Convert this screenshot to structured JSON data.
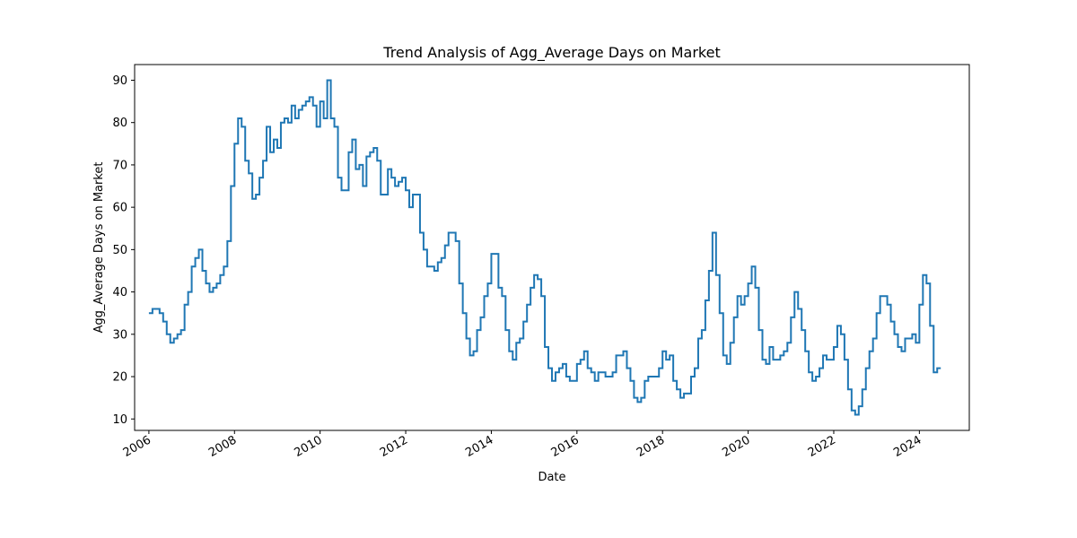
{
  "chart_data": {
    "type": "line",
    "title": "Trend Analysis of Agg_Average Days on Market",
    "xlabel": "Date",
    "ylabel": "Agg_Average Days on Market",
    "x_ticks": [
      "2006",
      "2008",
      "2010",
      "2012",
      "2014",
      "2016",
      "2018",
      "2020",
      "2022",
      "2024"
    ],
    "y_ticks": [
      10,
      20,
      30,
      40,
      50,
      60,
      70,
      80,
      90
    ],
    "xlim": [
      "2005-09",
      "2025-03"
    ],
    "ylim": [
      7.3,
      93.7
    ],
    "grid": false,
    "line_color": "#1f77b4",
    "series": [
      {
        "x": [
          "2006-01",
          "2006-02",
          "2006-03",
          "2006-04",
          "2006-05",
          "2006-06",
          "2006-07",
          "2006-08",
          "2006-09",
          "2006-10",
          "2006-11",
          "2006-12",
          "2007-01",
          "2007-02",
          "2007-03",
          "2007-04",
          "2007-05",
          "2007-06",
          "2007-07",
          "2007-08",
          "2007-09",
          "2007-10",
          "2007-11",
          "2007-12",
          "2008-01",
          "2008-02",
          "2008-03",
          "2008-04",
          "2008-05",
          "2008-06",
          "2008-07",
          "2008-08",
          "2008-09",
          "2008-10",
          "2008-11",
          "2008-12",
          "2009-01",
          "2009-02",
          "2009-03",
          "2009-04",
          "2009-05",
          "2009-06",
          "2009-07",
          "2009-08",
          "2009-09",
          "2009-10",
          "2009-11",
          "2009-12",
          "2010-01",
          "2010-02",
          "2010-03",
          "2010-04",
          "2010-05",
          "2010-06",
          "2010-07",
          "2010-08",
          "2010-09",
          "2010-10",
          "2010-11",
          "2010-12",
          "2011-01",
          "2011-02",
          "2011-03",
          "2011-04",
          "2011-05",
          "2011-06",
          "2011-07",
          "2011-08",
          "2011-09",
          "2011-10",
          "2011-11",
          "2011-12",
          "2012-01",
          "2012-02",
          "2012-03",
          "2012-04",
          "2012-05",
          "2012-06",
          "2012-07",
          "2012-08",
          "2012-09",
          "2012-10",
          "2012-11",
          "2012-12",
          "2013-01",
          "2013-02",
          "2013-03",
          "2013-04",
          "2013-05",
          "2013-06",
          "2013-07",
          "2013-08",
          "2013-09",
          "2013-10",
          "2013-11",
          "2013-12",
          "2014-01",
          "2014-02",
          "2014-03",
          "2014-04",
          "2014-05",
          "2014-06",
          "2014-07",
          "2014-08",
          "2014-09",
          "2014-10",
          "2014-11",
          "2014-12",
          "2015-01",
          "2015-02",
          "2015-03",
          "2015-04",
          "2015-05",
          "2015-06",
          "2015-07",
          "2015-08",
          "2015-09",
          "2015-10",
          "2015-11",
          "2015-12",
          "2016-01",
          "2016-02",
          "2016-03",
          "2016-04",
          "2016-05",
          "2016-06",
          "2016-07",
          "2016-08",
          "2016-09",
          "2016-10",
          "2016-11",
          "2016-12",
          "2017-01",
          "2017-02",
          "2017-03",
          "2017-04",
          "2017-05",
          "2017-06",
          "2017-07",
          "2017-08",
          "2017-09",
          "2017-10",
          "2017-11",
          "2017-12",
          "2018-01",
          "2018-02",
          "2018-03",
          "2018-04",
          "2018-05",
          "2018-06",
          "2018-07",
          "2018-08",
          "2018-09",
          "2018-10",
          "2018-11",
          "2018-12",
          "2019-01",
          "2019-02",
          "2019-03",
          "2019-04",
          "2019-05",
          "2019-06",
          "2019-07",
          "2019-08",
          "2019-09",
          "2019-10",
          "2019-11",
          "2019-12",
          "2020-01",
          "2020-02",
          "2020-03",
          "2020-04",
          "2020-05",
          "2020-06",
          "2020-07",
          "2020-08",
          "2020-09",
          "2020-10",
          "2020-11",
          "2020-12",
          "2021-01",
          "2021-02",
          "2021-03",
          "2021-04",
          "2021-05",
          "2021-06",
          "2021-07",
          "2021-08",
          "2021-09",
          "2021-10",
          "2021-11",
          "2021-12",
          "2022-01",
          "2022-02",
          "2022-03",
          "2022-04",
          "2022-05",
          "2022-06",
          "2022-07",
          "2022-08",
          "2022-09",
          "2022-10",
          "2022-11",
          "2022-12",
          "2023-01",
          "2023-02",
          "2023-03",
          "2023-04",
          "2023-05",
          "2023-06",
          "2023-07",
          "2023-08",
          "2023-09",
          "2023-10",
          "2023-11",
          "2023-12",
          "2024-01",
          "2024-02",
          "2024-03",
          "2024-04",
          "2024-05",
          "2024-06",
          "2024-07"
        ],
        "y": [
          35,
          36,
          36,
          35,
          33,
          30,
          28,
          29,
          30,
          31,
          37,
          40,
          46,
          48,
          50,
          45,
          42,
          40,
          41,
          42,
          44,
          46,
          52,
          65,
          75,
          81,
          79,
          71,
          68,
          62,
          63,
          67,
          71,
          79,
          73,
          76,
          74,
          80,
          81,
          80,
          84,
          81,
          83,
          84,
          85,
          86,
          84,
          79,
          85,
          81,
          90,
          81,
          79,
          67,
          64,
          64,
          73,
          76,
          69,
          70,
          65,
          72,
          73,
          74,
          71,
          63,
          63,
          69,
          67,
          65,
          66,
          67,
          64,
          60,
          63,
          63,
          54,
          50,
          46,
          46,
          45,
          47,
          48,
          51,
          54,
          54,
          52,
          42,
          35,
          29,
          25,
          26,
          31,
          34,
          39,
          42,
          49,
          49,
          41,
          39,
          31,
          26,
          24,
          28,
          29,
          33,
          37,
          41,
          44,
          43,
          39,
          27,
          22,
          19,
          21,
          22,
          23,
          20,
          19,
          19,
          23,
          24,
          26,
          22,
          21,
          19,
          21,
          21,
          20,
          20,
          21,
          25,
          25,
          26,
          22,
          19,
          15,
          14,
          15,
          19,
          20,
          20,
          20,
          22,
          26,
          24,
          25,
          19,
          17,
          15,
          16,
          16,
          20,
          22,
          29,
          31,
          38,
          45,
          54,
          44,
          35,
          25,
          23,
          28,
          34,
          39,
          37,
          39,
          42,
          46,
          41,
          31,
          24,
          23,
          27,
          24,
          24,
          25,
          26,
          28,
          34,
          40,
          36,
          31,
          26,
          21,
          19,
          20,
          22,
          25,
          24,
          24,
          27,
          32,
          30,
          24,
          17,
          12,
          11,
          13,
          17,
          22,
          26,
          29,
          35,
          39,
          39,
          37,
          33,
          30,
          27,
          26,
          29,
          29,
          30,
          28,
          37,
          44,
          42,
          32,
          21,
          22,
          22
        ]
      }
    ]
  }
}
